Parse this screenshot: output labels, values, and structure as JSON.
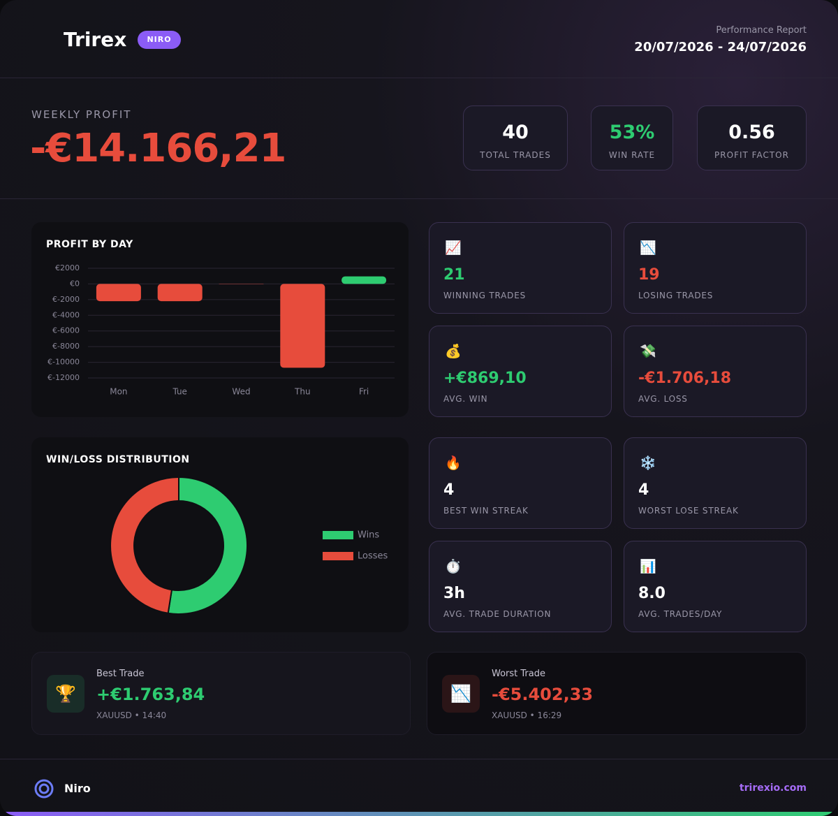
{
  "header": {
    "brand": "Trirex",
    "badge": "NIRO",
    "report_label": "Performance Report",
    "date_range": "20/07/2026 - 24/07/2026"
  },
  "summary": {
    "label": "WEEKLY PROFIT",
    "value": "-€14.166,21",
    "kpis": [
      {
        "value": "40",
        "label": "TOTAL TRADES",
        "color": "#ffffff"
      },
      {
        "value": "53%",
        "label": "WIN RATE",
        "color": "#2ecc71"
      },
      {
        "value": "0.56",
        "label": "PROFIT FACTOR",
        "color": "#ffffff"
      }
    ]
  },
  "chart_data": [
    {
      "type": "bar",
      "title": "PROFIT BY DAY",
      "categories": [
        "Mon",
        "Tue",
        "Wed",
        "Thu",
        "Fri"
      ],
      "values": [
        -2200,
        -2200,
        -30,
        -10700,
        964
      ],
      "positive_color": "#2ecc71",
      "negative_color": "#e74c3c",
      "ylim": [
        -12000,
        2000
      ],
      "yticks": [
        {
          "value": 2000,
          "label": "€2000"
        },
        {
          "value": 0,
          "label": "€0"
        },
        {
          "value": -2000,
          "label": "€-2000"
        },
        {
          "value": -4000,
          "label": "€-4000"
        },
        {
          "value": -6000,
          "label": "€-6000"
        },
        {
          "value": -8000,
          "label": "€-8000"
        },
        {
          "value": -10000,
          "label": "€-10000"
        },
        {
          "value": -12000,
          "label": "€-12000"
        }
      ],
      "grid": true
    },
    {
      "type": "donut",
      "title": "WIN/LOSS DISTRIBUTION",
      "categories": [
        "Wins",
        "Losses"
      ],
      "values": [
        21,
        19
      ],
      "colors": [
        "#2ecc71",
        "#e74c3c"
      ],
      "legend": "right"
    }
  ],
  "stats": [
    {
      "icon": "📈",
      "value": "21",
      "label": "WINNING TRADES",
      "color": "#2ecc71"
    },
    {
      "icon": "📉",
      "value": "19",
      "label": "LOSING TRADES",
      "color": "#e74c3c"
    },
    {
      "icon": "💰",
      "value": "+€869,10",
      "label": "AVG. WIN",
      "color": "#2ecc71"
    },
    {
      "icon": "💸",
      "value": "-€1.706,18",
      "label": "AVG. LOSS",
      "color": "#e74c3c"
    },
    {
      "icon": "🔥",
      "value": "4",
      "label": "BEST WIN STREAK",
      "color": "#ffffff"
    },
    {
      "icon": "❄️",
      "value": "4",
      "label": "WORST LOSE STREAK",
      "color": "#ffffff"
    },
    {
      "icon": "⏱️",
      "value": "3h",
      "label": "AVG. TRADE DURATION",
      "color": "#ffffff"
    },
    {
      "icon": "📊",
      "value": "8.0",
      "label": "AVG. TRADES/DAY",
      "color": "#ffffff"
    }
  ],
  "trades": [
    {
      "icon": "🏆",
      "label": "Best Trade",
      "value": "+€1.763,84",
      "detail": "XAUUSD • 14:40",
      "color": "#2ecc71"
    },
    {
      "icon": "📉",
      "label": "Worst Trade",
      "value": "-€5.402,33",
      "detail": "XAUUSD • 16:29",
      "color": "#e74c3c"
    }
  ],
  "footer": {
    "brand": "Niro",
    "url": "trirexio.com"
  }
}
